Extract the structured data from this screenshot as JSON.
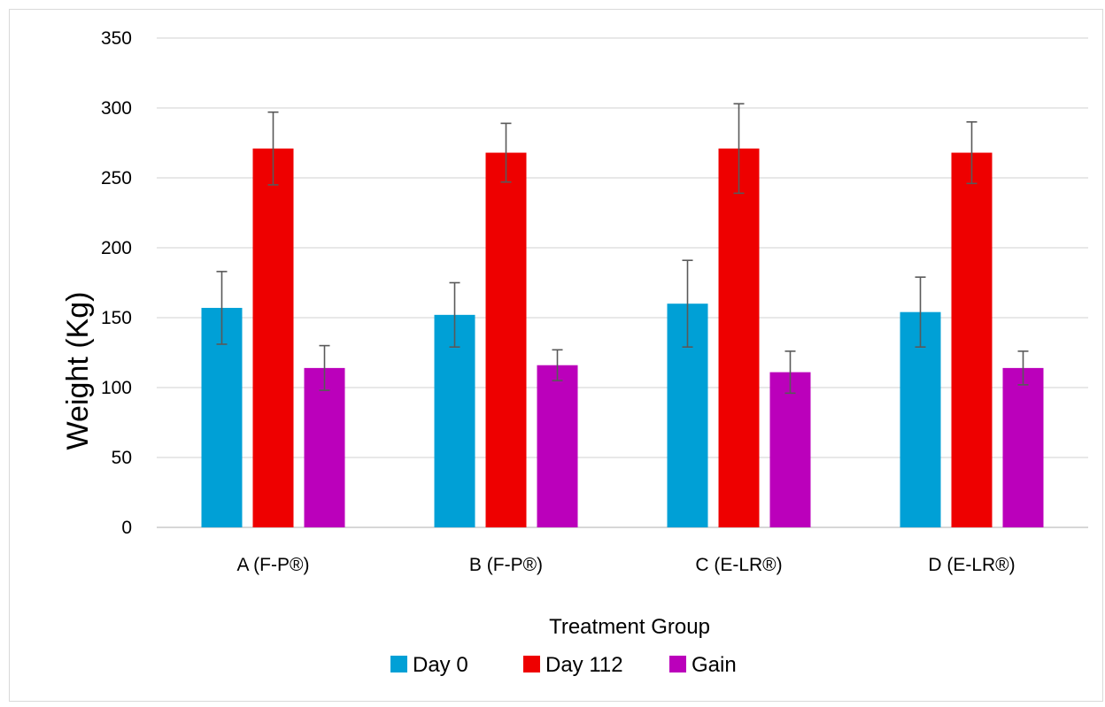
{
  "chart_data": {
    "type": "bar",
    "title": "",
    "xlabel": "Treatment Group",
    "ylabel": "Weight (Kg)",
    "ylim": [
      0,
      350
    ],
    "yticks": [
      0,
      50,
      100,
      150,
      200,
      250,
      300,
      350
    ],
    "grid": true,
    "legend_position": "bottom",
    "categories": [
      "A (F-P®)",
      "B (F-P®)",
      "C (E-LR®)",
      "D (E-LR®)"
    ],
    "series": [
      {
        "name": "Day 0",
        "color": "#00a0d6",
        "values": [
          157,
          152,
          160,
          154
        ],
        "errors": [
          26,
          23,
          31,
          25
        ]
      },
      {
        "name": "Day 112",
        "color": "#ee0000",
        "values": [
          271,
          268,
          271,
          268
        ],
        "errors": [
          26,
          21,
          32,
          22
        ]
      },
      {
        "name": "Gain",
        "color": "#bb00bb",
        "values": [
          114,
          116,
          111,
          114
        ],
        "errors": [
          16,
          11,
          15,
          12
        ]
      }
    ]
  }
}
